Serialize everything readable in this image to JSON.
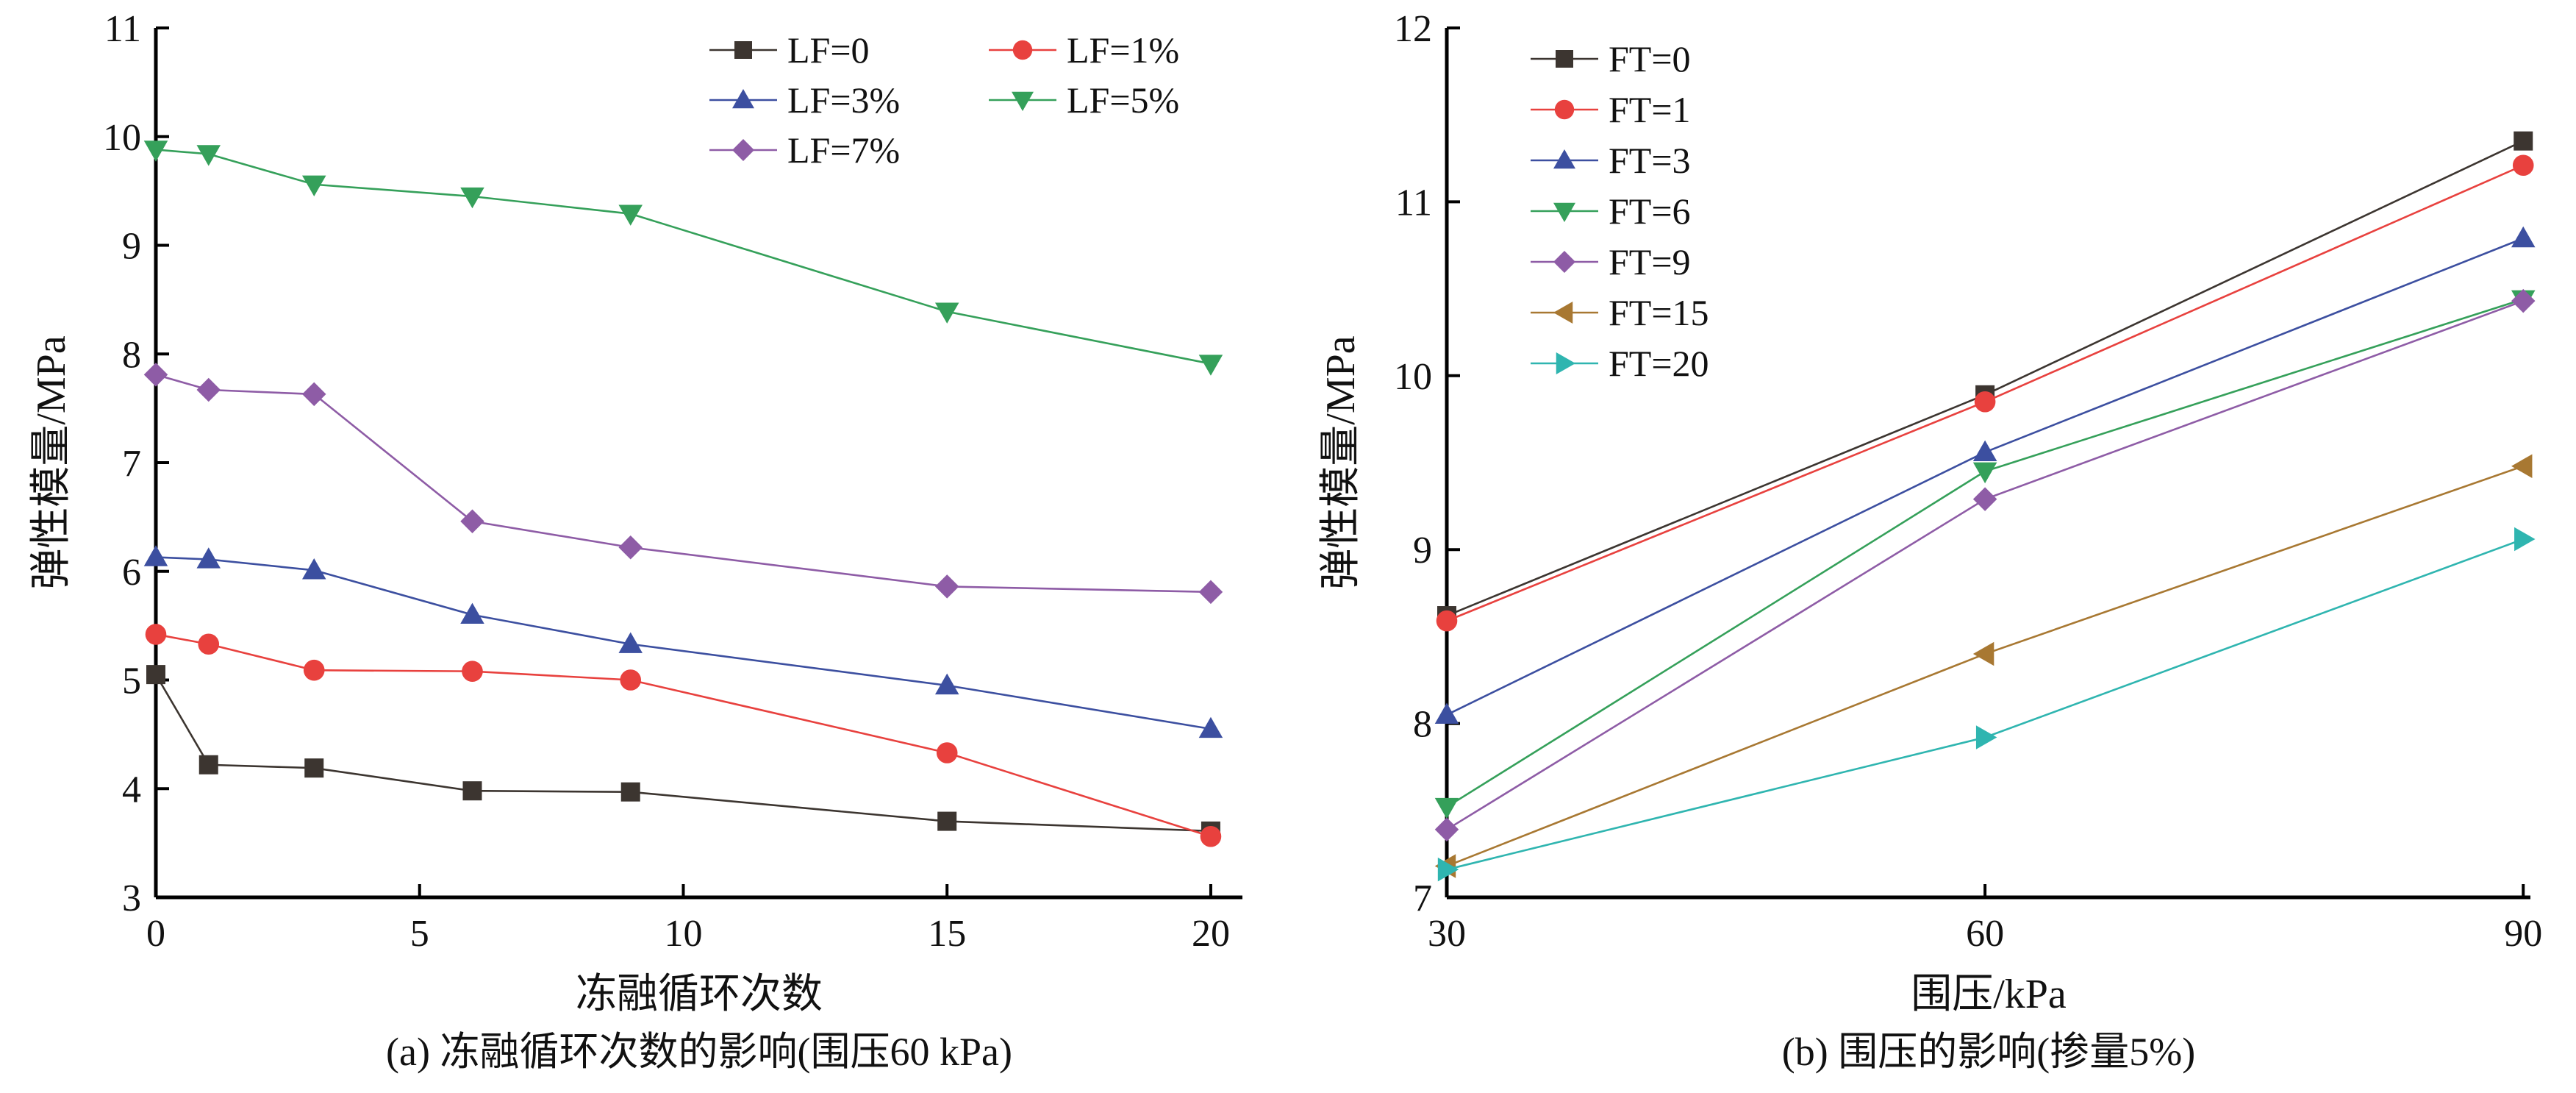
{
  "chart_data": [
    {
      "type": "line",
      "xlabel": "冻融循环次数",
      "ylabel": "弹性模量/MPa",
      "caption": "(a) 冻融循环次数的影响(围压60 kPa)",
      "xlim": [
        0,
        20.6
      ],
      "ylim": [
        3,
        11
      ],
      "xticks": [
        0,
        5,
        10,
        15,
        20
      ],
      "yticks": [
        3,
        4,
        5,
        6,
        7,
        8,
        9,
        10,
        11
      ],
      "x": [
        0,
        1,
        3,
        6,
        9,
        15,
        20
      ],
      "legend_position": "top-right",
      "grid": false,
      "series": [
        {
          "name": "LF=0",
          "marker": "square",
          "color": "#3c3530",
          "values": [
            5.05,
            4.22,
            4.19,
            3.98,
            3.97,
            3.7,
            3.61
          ]
        },
        {
          "name": "LF=1%",
          "marker": "circle",
          "color": "#e8413e",
          "values": [
            5.42,
            5.33,
            5.09,
            5.08,
            5.0,
            4.33,
            3.56
          ]
        },
        {
          "name": "LF=3%",
          "marker": "triangle-up",
          "color": "#3c4fa0",
          "values": [
            6.13,
            6.11,
            6.01,
            5.6,
            5.33,
            4.95,
            4.55
          ]
        },
        {
          "name": "LF=5%",
          "marker": "triangle-down",
          "color": "#35a05a",
          "values": [
            9.88,
            9.84,
            9.56,
            9.45,
            9.29,
            8.39,
            7.91
          ]
        },
        {
          "name": "LF=7%",
          "marker": "diamond",
          "color": "#8e5ca6",
          "values": [
            7.81,
            7.67,
            7.63,
            6.46,
            6.22,
            5.86,
            5.81
          ]
        }
      ]
    },
    {
      "type": "line",
      "xlabel": "围压/kPa",
      "ylabel": "弹性模量/MPa",
      "caption": "(b) 围压的影响(掺量5%)",
      "xlim": [
        30,
        90.4
      ],
      "ylim": [
        7,
        12
      ],
      "xticks": [
        30,
        60,
        90
      ],
      "yticks": [
        7,
        8,
        9,
        10,
        11,
        12
      ],
      "x": [
        30,
        60,
        90
      ],
      "legend_position": "top-left",
      "grid": false,
      "series": [
        {
          "name": "FT=0",
          "marker": "square",
          "color": "#3c3530",
          "values": [
            8.62,
            9.89,
            11.35
          ]
        },
        {
          "name": "FT=1",
          "marker": "circle",
          "color": "#e8413e",
          "values": [
            8.59,
            9.85,
            11.21
          ]
        },
        {
          "name": "FT=3",
          "marker": "triangle-up",
          "color": "#3c4fa0",
          "values": [
            8.05,
            9.56,
            10.79
          ]
        },
        {
          "name": "FT=6",
          "marker": "triangle-down",
          "color": "#35a05a",
          "values": [
            7.52,
            9.45,
            10.44
          ]
        },
        {
          "name": "FT=9",
          "marker": "diamond",
          "color": "#8e5ca6",
          "values": [
            7.39,
            9.29,
            10.43
          ]
        },
        {
          "name": "FT=15",
          "marker": "triangle-left",
          "color": "#a87832",
          "values": [
            7.18,
            8.4,
            9.48
          ]
        },
        {
          "name": "FT=20",
          "marker": "triangle-right",
          "color": "#2fb5b0",
          "values": [
            7.16,
            7.92,
            9.06
          ]
        }
      ]
    }
  ]
}
